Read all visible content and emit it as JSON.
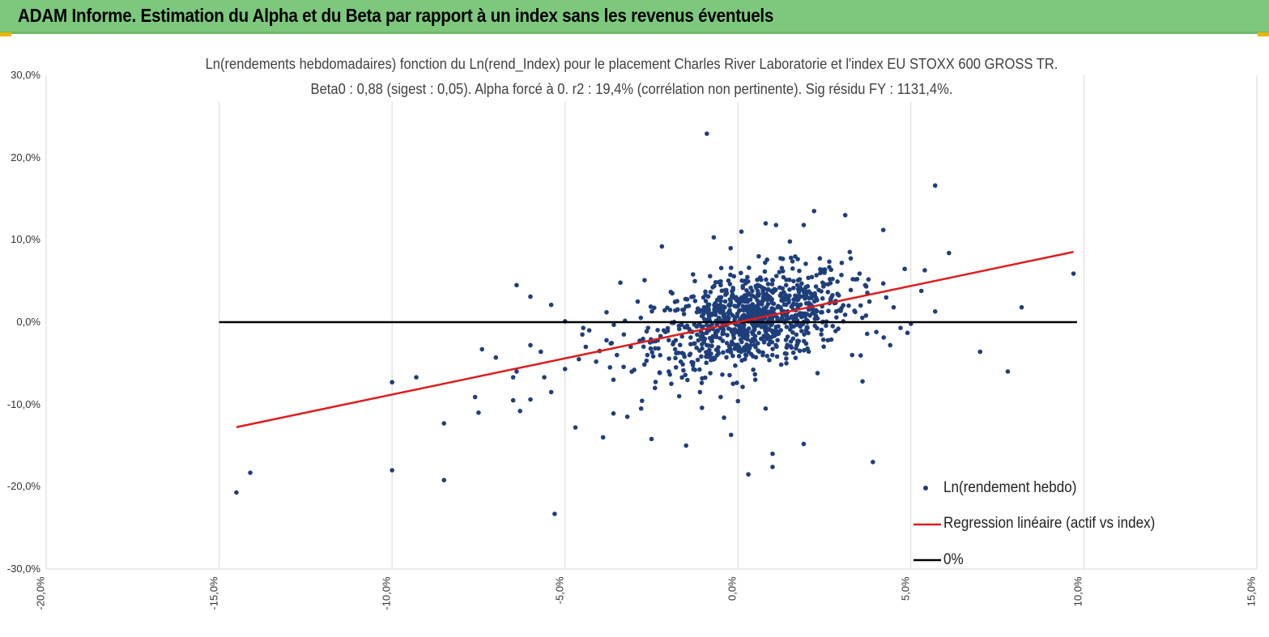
{
  "header": {
    "title": "ADAM Informe. Estimation du Alpha et du Beta par rapport à un index sans les revenus éventuels",
    "background": "#7dc87d"
  },
  "chart_data": {
    "type": "scatter",
    "title_line1": "Ln(rendements hebdomadaires) fonction du Ln(rend_Index) pour le placement Charles River Laboratorie et l'index EU STOXX 600 GROSS TR.",
    "title_line2": "Beta0 : 0,88 (sigest : 0,05). Alpha forcé à 0. r2 : 19,4% (corrélation non pertinente). Sig résidu FY : 1131,4%.",
    "xlim": [
      -0.2,
      0.15
    ],
    "ylim": [
      -0.3,
      0.3
    ],
    "x_ticks": [
      {
        "v": -0.2,
        "label": "-20,0%"
      },
      {
        "v": -0.15,
        "label": "-15,0%"
      },
      {
        "v": -0.1,
        "label": "-10,0%"
      },
      {
        "v": -0.05,
        "label": "-5,0%"
      },
      {
        "v": 0.0,
        "label": "0,0%"
      },
      {
        "v": 0.05,
        "label": "5,0%"
      },
      {
        "v": 0.1,
        "label": "10,0%"
      },
      {
        "v": 0.15,
        "label": "15,0%"
      }
    ],
    "y_ticks": [
      {
        "v": 0.3,
        "label": "30,0%"
      },
      {
        "v": 0.2,
        "label": "20,0%"
      },
      {
        "v": 0.1,
        "label": "10,0%"
      },
      {
        "v": 0.0,
        "label": "0,0%"
      },
      {
        "v": -0.1,
        "label": "-10,0%"
      },
      {
        "v": -0.2,
        "label": "-20,0%"
      },
      {
        "v": -0.3,
        "label": "-30,0%"
      }
    ],
    "grid": "vertical",
    "legend_position": "bottom-right",
    "series": [
      {
        "name": "Ln(rendement hebdo)",
        "kind": "scatter",
        "color": "#1f3f7a",
        "points": [
          [
            -0.145,
            -0.207
          ],
          [
            -0.141,
            -0.183
          ],
          [
            -0.1,
            -0.18
          ],
          [
            -0.085,
            -0.192
          ],
          [
            -0.053,
            -0.233
          ],
          [
            -0.1,
            -0.073
          ],
          [
            -0.093,
            -0.067
          ],
          [
            -0.085,
            -0.123
          ],
          [
            -0.076,
            -0.091
          ],
          [
            -0.075,
            -0.11
          ],
          [
            -0.074,
            -0.033
          ],
          [
            -0.07,
            -0.043
          ],
          [
            -0.065,
            -0.067
          ],
          [
            -0.065,
            -0.095
          ],
          [
            -0.064,
            -0.06
          ],
          [
            -0.064,
            0.045
          ],
          [
            -0.063,
            -0.108
          ],
          [
            -0.06,
            -0.094
          ],
          [
            -0.06,
            0.031
          ],
          [
            -0.06,
            -0.028
          ],
          [
            -0.057,
            -0.036
          ],
          [
            -0.056,
            -0.067
          ],
          [
            -0.054,
            -0.085
          ],
          [
            -0.054,
            0.021
          ],
          [
            -0.05,
            0.001
          ],
          [
            -0.05,
            -0.057
          ],
          [
            -0.047,
            -0.128
          ],
          [
            -0.046,
            -0.045
          ],
          [
            -0.045,
            -0.015
          ],
          [
            -0.044,
            -0.03
          ],
          [
            -0.043,
            -0.01
          ],
          [
            -0.041,
            -0.048
          ],
          [
            -0.04,
            -0.035
          ],
          [
            -0.039,
            -0.14
          ],
          [
            -0.038,
            -0.022
          ],
          [
            -0.038,
            0.012
          ],
          [
            -0.037,
            -0.055
          ],
          [
            -0.036,
            -0.07
          ],
          [
            -0.036,
            -0.111
          ],
          [
            -0.035,
            -0.04
          ],
          [
            -0.034,
            0.048
          ],
          [
            -0.033,
            -0.015
          ],
          [
            -0.032,
            -0.115
          ],
          [
            -0.031,
            -0.03
          ],
          [
            -0.03,
            -0.058
          ],
          [
            -0.029,
            0.025
          ],
          [
            -0.028,
            -0.105
          ],
          [
            -0.027,
            0.051
          ],
          [
            -0.026,
            -0.007
          ],
          [
            -0.025,
            -0.142
          ],
          [
            -0.024,
            -0.08
          ],
          [
            -0.023,
            -0.032
          ],
          [
            -0.022,
            0.092
          ],
          [
            -0.021,
            -0.012
          ],
          [
            -0.02,
            -0.06
          ],
          [
            -0.019,
            0.035
          ],
          [
            -0.018,
            -0.022
          ],
          [
            -0.017,
            -0.09
          ],
          [
            -0.016,
            0.015
          ],
          [
            -0.015,
            -0.15
          ],
          [
            -0.014,
            -0.04
          ],
          [
            -0.013,
            0.058
          ],
          [
            -0.012,
            -0.005
          ],
          [
            -0.011,
            -0.085
          ],
          [
            -0.01,
            0.03
          ],
          [
            -0.009,
            0.229
          ],
          [
            -0.009,
            -0.028
          ],
          [
            -0.008,
            -0.062
          ],
          [
            -0.007,
            0.103
          ],
          [
            -0.006,
            -0.01
          ],
          [
            -0.005,
            0.045
          ],
          [
            -0.005,
            -0.091
          ],
          [
            -0.004,
            0.01
          ],
          [
            -0.003,
            -0.035
          ],
          [
            -0.002,
            0.066
          ],
          [
            -0.002,
            -0.137
          ],
          [
            -0.001,
            -0.012
          ],
          [
            0.0,
            0.02
          ],
          [
            0.0,
            -0.096
          ],
          [
            0.001,
            0.11
          ],
          [
            0.002,
            -0.045
          ],
          [
            0.003,
            0.035
          ],
          [
            0.003,
            -0.185
          ],
          [
            0.004,
            0.005
          ],
          [
            0.005,
            -0.07
          ],
          [
            0.006,
            0.08
          ],
          [
            0.007,
            -0.02
          ],
          [
            0.008,
            0.12
          ],
          [
            0.008,
            -0.105
          ],
          [
            0.009,
            0.03
          ],
          [
            0.01,
            -0.16
          ],
          [
            0.01,
            -0.176
          ],
          [
            0.011,
            0.118
          ],
          [
            0.012,
            0.002
          ],
          [
            0.013,
            0.062
          ],
          [
            0.014,
            -0.05
          ],
          [
            0.015,
            0.098
          ],
          [
            0.016,
            0.015
          ],
          [
            0.017,
            -0.028
          ],
          [
            0.018,
            0.042
          ],
          [
            0.019,
            -0.148
          ],
          [
            0.019,
            0.118
          ],
          [
            0.02,
            -0.006
          ],
          [
            0.021,
            0.035
          ],
          [
            0.022,
            0.135
          ],
          [
            0.023,
            -0.062
          ],
          [
            0.024,
            0.012
          ],
          [
            0.025,
            0.06
          ],
          [
            0.026,
            -0.022
          ],
          [
            0.027,
            0.03
          ],
          [
            0.029,
            -0.008
          ],
          [
            0.03,
            0.072
          ],
          [
            0.031,
            0.13
          ],
          [
            0.032,
            0.02
          ],
          [
            0.033,
            -0.04
          ],
          [
            0.034,
            0.052
          ],
          [
            0.036,
            -0.072
          ],
          [
            0.037,
            0.008
          ],
          [
            0.038,
            0.025
          ],
          [
            0.039,
            -0.17
          ],
          [
            0.04,
            -0.012
          ],
          [
            0.042,
            0.112
          ],
          [
            0.042,
            0.047
          ],
          [
            0.044,
            -0.028
          ],
          [
            0.045,
            0.018
          ],
          [
            0.047,
            -0.007
          ],
          [
            0.049,
            -0.013
          ],
          [
            0.05,
            -0.002
          ],
          [
            0.053,
            0.038
          ],
          [
            0.054,
            0.063
          ],
          [
            0.057,
            0.166
          ],
          [
            0.057,
            0.013
          ],
          [
            0.061,
            0.084
          ],
          [
            0.07,
            -0.036
          ],
          [
            0.078,
            -0.06
          ],
          [
            0.082,
            0.018
          ],
          [
            0.097,
            0.059
          ]
        ]
      },
      {
        "name": "Regression linéaire (actif vs index)",
        "kind": "line",
        "color": "#e01b1b",
        "slope": 0.88,
        "x_range": [
          -0.145,
          0.097
        ]
      },
      {
        "name": "0%",
        "kind": "line",
        "color": "#000000",
        "y": 0.0,
        "x_range": [
          -0.15,
          0.098
        ]
      }
    ]
  }
}
